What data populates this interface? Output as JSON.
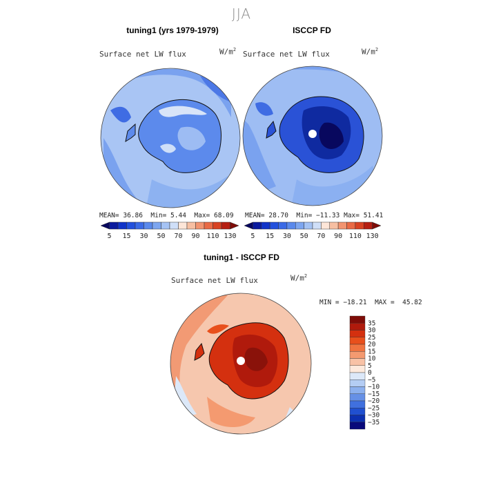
{
  "season": "JJA",
  "chart_data": [
    {
      "type": "heatmap",
      "projection": "south-polar-stereographic",
      "title": "tuning1 (yrs 1979-1979)",
      "variable": "Surface net LW flux",
      "units": "W/m",
      "units_exp": "2",
      "stats": {
        "mean_label": "MEAN=",
        "mean": "36.86",
        "min_label": "Min=",
        "min": "5.44",
        "max_label": "Max=",
        "max": "68.09"
      },
      "colorbar": {
        "levels": [
          5,
          10,
          15,
          20,
          30,
          40,
          50,
          60,
          70,
          80,
          90,
          100,
          110,
          120,
          130
        ],
        "tick_labels": [
          "5",
          "15",
          "30",
          "50",
          "70",
          "90",
          "110",
          "130"
        ],
        "colors": [
          "#08085e",
          "#0a1a9e",
          "#1033c8",
          "#2250dd",
          "#3a6ae6",
          "#5a89ec",
          "#7da6f0",
          "#a5c3f4",
          "#cfdff8",
          "#fde6d8",
          "#f7bfa2",
          "#f29470",
          "#e96a45",
          "#d84222",
          "#b61e12",
          "#7e0c08"
        ]
      }
    },
    {
      "type": "heatmap",
      "projection": "south-polar-stereographic",
      "title": "ISCCP FD",
      "variable": "Surface net LW flux",
      "units": "W/m",
      "units_exp": "2",
      "stats": {
        "mean_label": "MEAN=",
        "mean": "28.70",
        "min_label": "Min=",
        "min": "−11.33",
        "max_label": "Max=",
        "max": "51.41"
      },
      "colorbar": {
        "levels": [
          5,
          10,
          15,
          20,
          30,
          40,
          50,
          60,
          70,
          80,
          90,
          100,
          110,
          120,
          130
        ],
        "tick_labels": [
          "5",
          "15",
          "30",
          "50",
          "70",
          "90",
          "110",
          "130"
        ],
        "colors": [
          "#08085e",
          "#0a1a9e",
          "#1033c8",
          "#2250dd",
          "#3a6ae6",
          "#5a89ec",
          "#7da6f0",
          "#a5c3f4",
          "#cfdff8",
          "#fde6d8",
          "#f7bfa2",
          "#f29470",
          "#e96a45",
          "#d84222",
          "#b61e12",
          "#7e0c08"
        ]
      }
    },
    {
      "type": "heatmap",
      "projection": "south-polar-stereographic",
      "title": "tuning1 - ISCCP FD",
      "variable": "Surface net LW flux",
      "units": "W/m",
      "units_exp": "2",
      "stats_line": "MIN = −18.21  MAX =  45.82",
      "colorbar": {
        "orientation": "vertical",
        "levels": [
          35,
          30,
          25,
          20,
          15,
          10,
          5,
          0,
          -5,
          -10,
          -15,
          -20,
          -25,
          -30,
          -35
        ],
        "tick_labels": [
          "35",
          "30",
          "25",
          "20",
          "15",
          "10",
          "5",
          "0",
          "−5",
          "−10",
          "−15",
          "−20",
          "−25",
          "−30",
          "−35"
        ],
        "colors": [
          "#7e0c08",
          "#b01a0c",
          "#d4300f",
          "#e8501c",
          "#f07440",
          "#f49a70",
          "#f8c2a6",
          "#fde9dc",
          "#dce8f8",
          "#b4cdf4",
          "#8cb0ee",
          "#6690e6",
          "#4070de",
          "#2050d0",
          "#0c30b0",
          "#08087a"
        ]
      }
    }
  ]
}
